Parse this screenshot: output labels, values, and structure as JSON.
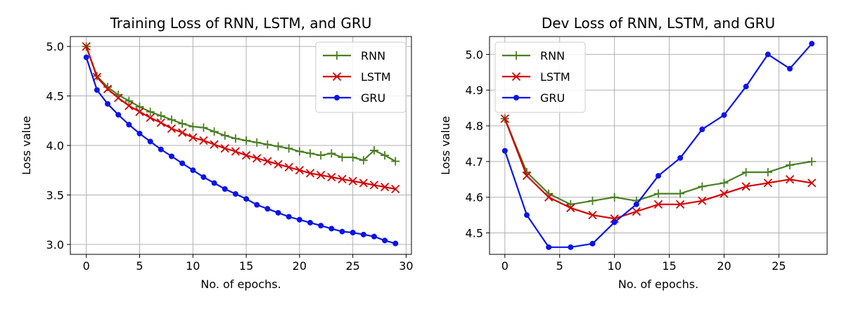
{
  "chart_data": [
    {
      "type": "line",
      "title": "Training Loss of RNN, LSTM, and GRU",
      "xlabel": "No. of epochs.",
      "ylabel": "Loss value",
      "xlim": [
        -1.5,
        30.5
      ],
      "ylim": [
        2.9,
        5.1
      ],
      "xticks": [
        0,
        5,
        10,
        15,
        20,
        25,
        30
      ],
      "yticks": [
        3.0,
        3.5,
        4.0,
        4.5,
        5.0
      ],
      "xtick_labels": [
        "0",
        "5",
        "10",
        "15",
        "20",
        "25",
        "30"
      ],
      "ytick_labels": [
        "3.0",
        "3.5",
        "4.0",
        "4.5",
        "5.0"
      ],
      "grid": true,
      "legend_position": "top-right",
      "x": [
        0,
        1,
        2,
        3,
        4,
        5,
        6,
        7,
        8,
        9,
        10,
        11,
        12,
        13,
        14,
        15,
        16,
        17,
        18,
        19,
        20,
        21,
        22,
        23,
        24,
        25,
        26,
        27,
        28,
        29
      ],
      "series": [
        {
          "name": "RNN",
          "color": "#4a7f23",
          "marker": "plus",
          "values": [
            5.0,
            4.7,
            4.59,
            4.51,
            4.45,
            4.39,
            4.34,
            4.3,
            4.26,
            4.22,
            4.19,
            4.18,
            4.14,
            4.1,
            4.07,
            4.05,
            4.03,
            4.01,
            3.99,
            3.97,
            3.94,
            3.92,
            3.9,
            3.92,
            3.88,
            3.88,
            3.85,
            3.95,
            3.9,
            3.84
          ]
        },
        {
          "name": "LSTM",
          "color": "#d40000",
          "marker": "x",
          "values": [
            5.0,
            4.69,
            4.57,
            4.48,
            4.4,
            4.34,
            4.28,
            4.23,
            4.17,
            4.13,
            4.08,
            4.05,
            4.01,
            3.97,
            3.94,
            3.9,
            3.87,
            3.84,
            3.81,
            3.78,
            3.75,
            3.72,
            3.7,
            3.68,
            3.66,
            3.64,
            3.62,
            3.6,
            3.58,
            3.56
          ]
        },
        {
          "name": "GRU",
          "color": "#0b14e8",
          "marker": "circle",
          "values": [
            4.89,
            4.56,
            4.42,
            4.31,
            4.21,
            4.12,
            4.04,
            3.96,
            3.89,
            3.82,
            3.75,
            3.68,
            3.62,
            3.56,
            3.51,
            3.46,
            3.4,
            3.36,
            3.32,
            3.28,
            3.25,
            3.22,
            3.19,
            3.16,
            3.13,
            3.12,
            3.1,
            3.08,
            3.04,
            3.01
          ]
        }
      ]
    },
    {
      "type": "line",
      "title": "Dev Loss of RNN, LSTM, and GRU",
      "xlabel": "No. of epochs.",
      "ylabel": "Loss value",
      "xlim": [
        -1.4,
        29.4
      ],
      "ylim": [
        4.44,
        5.05
      ],
      "xticks": [
        0,
        5,
        10,
        15,
        20,
        25
      ],
      "yticks": [
        4.5,
        4.6,
        4.7,
        4.8,
        4.9,
        5.0
      ],
      "xtick_labels": [
        "0",
        "5",
        "10",
        "15",
        "20",
        "25"
      ],
      "ytick_labels": [
        "4.5",
        "4.6",
        "4.7",
        "4.8",
        "4.9",
        "5.0"
      ],
      "grid": true,
      "legend_position": "top-left",
      "x": [
        0,
        2,
        4,
        6,
        8,
        10,
        12,
        14,
        16,
        18,
        20,
        22,
        24,
        26,
        28
      ],
      "series": [
        {
          "name": "RNN",
          "color": "#4a7f23",
          "marker": "plus",
          "values": [
            4.82,
            4.67,
            4.61,
            4.58,
            4.59,
            4.6,
            4.59,
            4.61,
            4.61,
            4.63,
            4.64,
            4.67,
            4.67,
            4.69,
            4.7
          ]
        },
        {
          "name": "LSTM",
          "color": "#d40000",
          "marker": "x",
          "values": [
            4.82,
            4.66,
            4.6,
            4.57,
            4.55,
            4.54,
            4.56,
            4.58,
            4.58,
            4.59,
            4.61,
            4.63,
            4.64,
            4.65,
            4.64
          ]
        },
        {
          "name": "GRU",
          "color": "#0b14e8",
          "marker": "circle",
          "values": [
            4.73,
            4.55,
            4.46,
            4.46,
            4.47,
            4.53,
            4.58,
            4.66,
            4.71,
            4.79,
            4.83,
            4.91,
            5.0,
            4.96,
            5.03
          ]
        }
      ]
    }
  ]
}
